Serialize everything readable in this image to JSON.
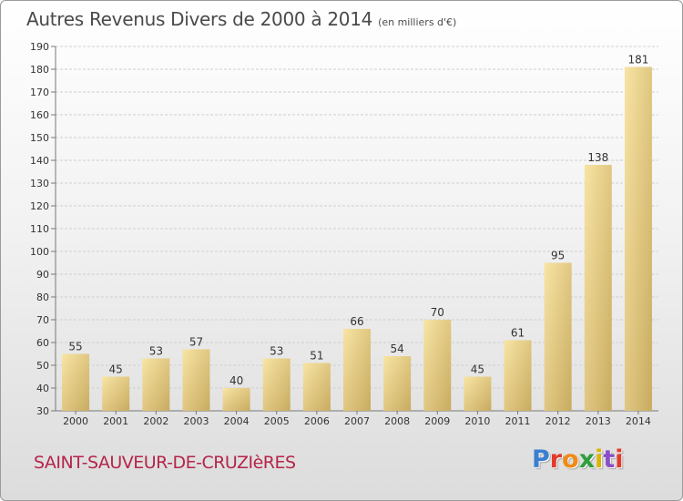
{
  "title": "Autres Revenus Divers de 2000 à 2014",
  "subtitle": "(en milliers d'€)",
  "location": "SAINT-SAUVEUR-DE-CRUZIèRES",
  "logo": {
    "text": "Proxiti",
    "colors": [
      "#3a7fd0",
      "#e23b2b",
      "#f08a16",
      "#2f9e3b",
      "#d9b400",
      "#8a4fc8",
      "#e23b2b"
    ]
  },
  "colors": {
    "bar_light": "#f8e4a4",
    "bar_dark": "#c8ab60",
    "location_text": "#b5254a"
  },
  "chart_data": {
    "type": "bar",
    "categories": [
      "2000",
      "2001",
      "2002",
      "2003",
      "2004",
      "2005",
      "2006",
      "2007",
      "2008",
      "2009",
      "2010",
      "2011",
      "2012",
      "2013",
      "2014"
    ],
    "values": [
      55,
      45,
      53,
      57,
      40,
      53,
      51,
      66,
      54,
      70,
      45,
      61,
      95,
      138,
      181
    ],
    "ylim": [
      30,
      190
    ],
    "yticks": [
      30,
      40,
      50,
      60,
      70,
      80,
      90,
      100,
      110,
      120,
      130,
      140,
      150,
      160,
      170,
      180,
      190
    ],
    "grid": true,
    "xlabel": "",
    "ylabel": ""
  }
}
